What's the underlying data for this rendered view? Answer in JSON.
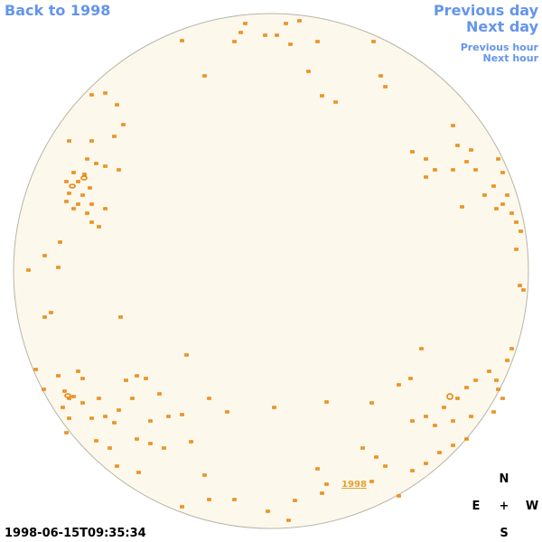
{
  "nav": {
    "back": "Back to 1998",
    "previous_day": "Previous day",
    "next_day": "Next day",
    "previous_hour": "Previous hour",
    "next_hour": "Next hour"
  },
  "disk": {
    "label": "1998"
  },
  "compass": {
    "north": "N",
    "east": "E",
    "center": "+",
    "west": "W",
    "south": "S"
  },
  "timestamp": "1998-06-15T09:35:34"
}
